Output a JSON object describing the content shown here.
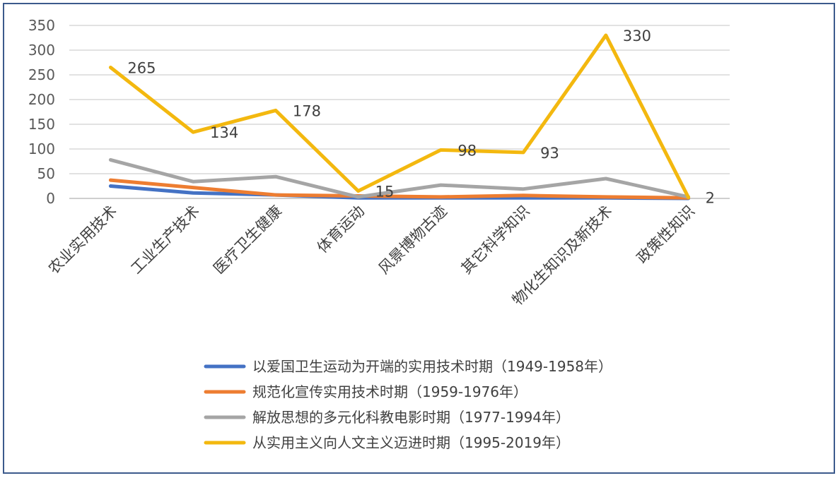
{
  "chart_data": {
    "type": "line",
    "categories": [
      "农业实用技术",
      "工业生产技术",
      "医疗卫生健康",
      "体育运动",
      "风景博物古迹",
      "其它科学知识",
      "物化生知识及新技术",
      "政策性知识"
    ],
    "ylim": [
      0,
      350
    ],
    "yticks": [
      0,
      50,
      100,
      150,
      200,
      250,
      300,
      350
    ],
    "grid": true,
    "legend_position": "bottom",
    "series": [
      {
        "name": "以爱国卫生运动为开端的实用技术时期（1949-1958年）",
        "color": "#4472c4",
        "values": [
          25,
          11,
          7,
          1,
          1,
          1,
          1,
          0
        ]
      },
      {
        "name": "规范化宣传实用技术时期（1959-1976年）",
        "color": "#ed7d31",
        "values": [
          37,
          22,
          7,
          5,
          3,
          6,
          3,
          1
        ]
      },
      {
        "name": "解放思想的多元化科教电影时期（1977-1994年）",
        "color": "#a5a5a5",
        "values": [
          78,
          34,
          44,
          3,
          27,
          19,
          40,
          3
        ]
      },
      {
        "name": "从实用主义向人文主义迈进时期（1995-2019年）",
        "color": "#f3b80f",
        "values": [
          265,
          134,
          178,
          15,
          98,
          93,
          330,
          2
        ],
        "data_labels": [
          "265",
          "134",
          "178",
          "15",
          "98",
          "93",
          "330",
          "2"
        ]
      }
    ]
  }
}
